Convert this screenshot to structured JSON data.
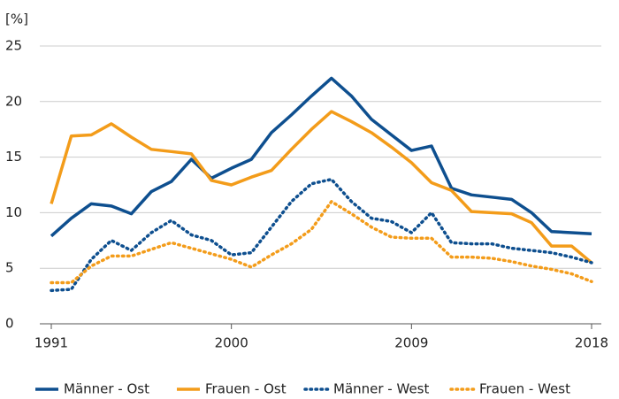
{
  "chart_data": {
    "type": "line",
    "ylabel": "[%]",
    "x": [
      1991,
      1992,
      1993,
      1994,
      1995,
      1996,
      1997,
      1998,
      1999,
      2000,
      2001,
      2002,
      2003,
      2004,
      2005,
      2006,
      2007,
      2008,
      2009,
      2010,
      2011,
      2012,
      2013,
      2014,
      2015,
      2016,
      2017,
      2018
    ],
    "xlim": [
      1991,
      2018
    ],
    "xticks": [
      1991,
      2000,
      2009,
      2018
    ],
    "ylim": [
      0,
      25
    ],
    "yticks": [
      0,
      5,
      10,
      15,
      20,
      25
    ],
    "grid": true,
    "legend": "bottom",
    "series": [
      {
        "name": "Männer - Ost",
        "color": "#0e4f8f",
        "style": "solid",
        "values": [
          7.9,
          9.5,
          10.8,
          10.6,
          9.9,
          11.9,
          12.8,
          14.8,
          13.1,
          14.0,
          14.8,
          17.2,
          18.8,
          20.5,
          22.1,
          20.5,
          18.4,
          17.0,
          15.6,
          16.0,
          12.2,
          11.6,
          11.4,
          11.2,
          10.0,
          8.3,
          8.2,
          8.1
        ]
      },
      {
        "name": "Frauen - Ost",
        "color": "#f39c1a",
        "style": "solid",
        "values": [
          10.8,
          16.9,
          17.0,
          18.0,
          16.8,
          15.7,
          15.5,
          15.3,
          12.9,
          12.5,
          13.2,
          13.8,
          15.7,
          17.5,
          19.1,
          18.2,
          17.2,
          15.9,
          14.5,
          12.7,
          12.0,
          10.1,
          10.0,
          9.9,
          9.1,
          7.0,
          7.0,
          5.5
        ]
      },
      {
        "name": "Männer - West",
        "color": "#0e4f8f",
        "style": "dotted",
        "values": [
          3.0,
          3.1,
          5.8,
          7.5,
          6.6,
          8.2,
          9.3,
          8.0,
          7.5,
          6.2,
          6.4,
          8.7,
          11.0,
          12.6,
          13.0,
          11.0,
          9.5,
          9.2,
          8.2,
          10.0,
          7.3,
          7.2,
          7.2,
          6.8,
          6.6,
          6.4,
          6.0,
          5.5
        ]
      },
      {
        "name": "Frauen - West",
        "color": "#f39c1a",
        "style": "dotted",
        "values": [
          3.7,
          3.7,
          5.2,
          6.1,
          6.1,
          6.7,
          7.3,
          6.8,
          6.3,
          5.8,
          5.1,
          6.2,
          7.2,
          8.5,
          11.0,
          9.9,
          8.7,
          7.8,
          7.7,
          7.7,
          6.0,
          6.0,
          5.9,
          5.6,
          5.2,
          4.9,
          4.5,
          3.8
        ]
      }
    ]
  }
}
